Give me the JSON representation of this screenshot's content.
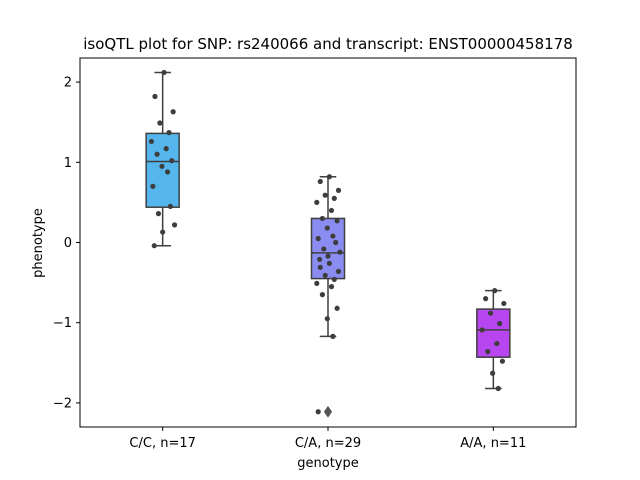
{
  "chart_data": {
    "type": "box",
    "title": "isoQTL plot for SNP: rs240066 and transcript: ENST00000458178",
    "xlabel": "genotype",
    "ylabel": "phenotype",
    "ylim": [
      -2.3,
      2.3
    ],
    "yticks": [
      -2,
      -1,
      0,
      1,
      2
    ],
    "grid": false,
    "groups": [
      {
        "label": "C/C, n=17",
        "color": "#55b6ed",
        "q1": 0.44,
        "median": 1.01,
        "q3": 1.36,
        "whisker_low": -0.04,
        "whisker_high": 2.12,
        "outliers": [],
        "points": [
          2.12,
          1.82,
          1.63,
          1.49,
          1.37,
          1.26,
          1.17,
          1.1,
          1.02,
          0.95,
          0.88,
          0.7,
          0.45,
          0.36,
          0.22,
          0.13,
          -0.04
        ]
      },
      {
        "label": "C/A, n=29",
        "color": "#8b8cf2",
        "q1": -0.45,
        "median": -0.13,
        "q3": 0.3,
        "whisker_low": -1.17,
        "whisker_high": 0.82,
        "outliers": [
          -2.11
        ],
        "points": [
          0.82,
          0.76,
          0.65,
          0.59,
          0.55,
          0.5,
          0.4,
          0.3,
          0.27,
          0.18,
          0.08,
          0.05,
          0.0,
          -0.08,
          -0.12,
          -0.17,
          -0.21,
          -0.26,
          -0.31,
          -0.36,
          -0.41,
          -0.46,
          -0.51,
          -0.55,
          -0.65,
          -0.82,
          -0.95,
          -1.17,
          -2.11
        ]
      },
      {
        "label": "A/A, n=11",
        "color": "#b846f0",
        "q1": -1.43,
        "median": -1.09,
        "q3": -0.83,
        "whisker_low": -1.82,
        "whisker_high": -0.6,
        "outliers": [],
        "points": [
          -0.6,
          -0.7,
          -0.76,
          -0.88,
          -1.01,
          -1.09,
          -1.26,
          -1.36,
          -1.48,
          -1.63,
          -1.82
        ]
      }
    ]
  }
}
